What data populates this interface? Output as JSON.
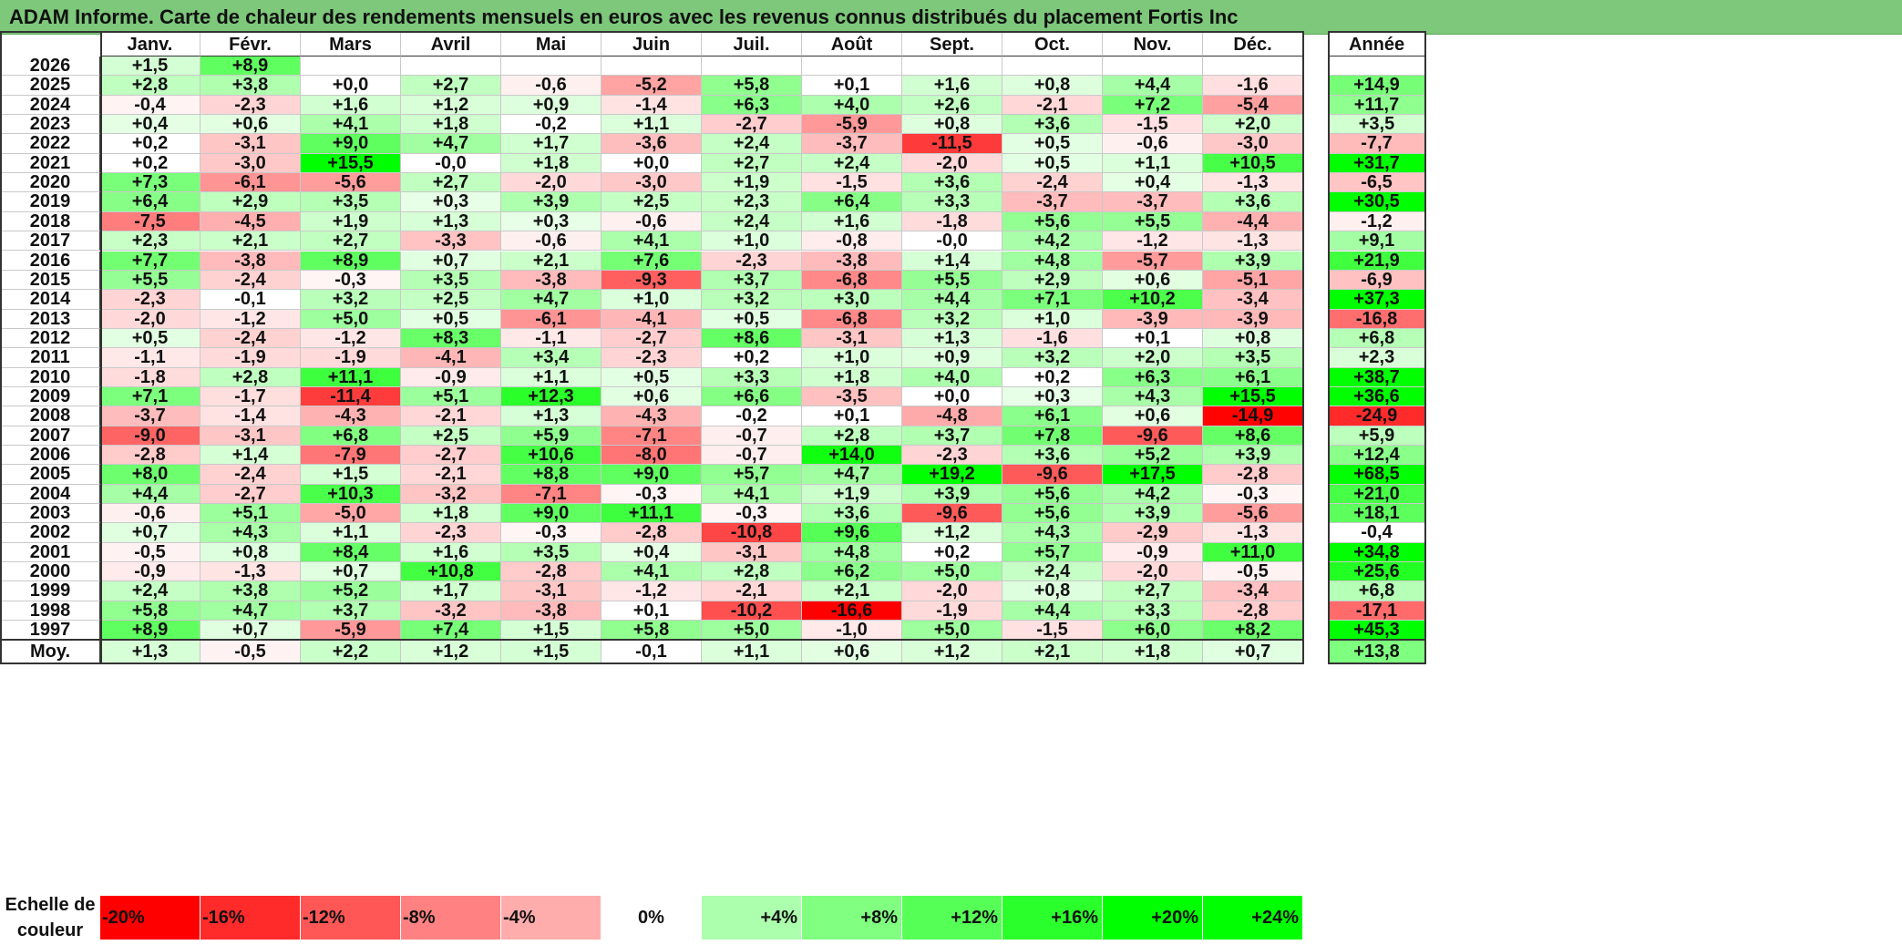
{
  "title": "ADAM Informe. Carte de chaleur des rendements mensuels en euros avec les revenus connus distribués du placement Fortis Inc",
  "chart_data": {
    "type": "heatmap",
    "title": "ADAM Informe. Carte de chaleur des rendements mensuels en euros avec les revenus connus distribués du placement Fortis Inc",
    "months": [
      "Janv.",
      "Févr.",
      "Mars",
      "Avril",
      "Mai",
      "Juin",
      "Juil.",
      "Août",
      "Sept.",
      "Oct.",
      "Nov.",
      "Déc."
    ],
    "annual_header": "Année",
    "rows": [
      {
        "year": "2026",
        "values": [
          "+1,5",
          "+8,9",
          "",
          "",
          "",
          "",
          "",
          "",
          "",
          "",
          "",
          ""
        ],
        "annual": ""
      },
      {
        "year": "2025",
        "values": [
          "+2,8",
          "+3,8",
          "+0,0",
          "+2,7",
          "-0,6",
          "-5,2",
          "+5,8",
          "+0,1",
          "+1,6",
          "+0,8",
          "+4,4",
          "-1,6"
        ],
        "annual": "+14,9"
      },
      {
        "year": "2024",
        "values": [
          "-0,4",
          "-2,3",
          "+1,6",
          "+1,2",
          "+0,9",
          "-1,4",
          "+6,3",
          "+4,0",
          "+2,6",
          "-2,1",
          "+7,2",
          "-5,4"
        ],
        "annual": "+11,7"
      },
      {
        "year": "2023",
        "values": [
          "+0,4",
          "+0,6",
          "+4,1",
          "+1,8",
          "-0,2",
          "+1,1",
          "-2,7",
          "-5,9",
          "+0,8",
          "+3,6",
          "-1,5",
          "+2,0"
        ],
        "annual": "+3,5"
      },
      {
        "year": "2022",
        "values": [
          "+0,2",
          "-3,1",
          "+9,0",
          "+4,7",
          "+1,7",
          "-3,6",
          "+2,4",
          "-3,7",
          "-11,5",
          "+0,5",
          "-0,6",
          "-3,0"
        ],
        "annual": "-7,7"
      },
      {
        "year": "2021",
        "values": [
          "+0,2",
          "-3,0",
          "+15,5",
          "-0,0",
          "+1,8",
          "+0,0",
          "+2,7",
          "+2,4",
          "-2,0",
          "+0,5",
          "+1,1",
          "+10,5"
        ],
        "annual": "+31,7"
      },
      {
        "year": "2020",
        "values": [
          "+7,3",
          "-6,1",
          "-5,6",
          "+2,7",
          "-2,0",
          "-3,0",
          "+1,9",
          "-1,5",
          "+3,6",
          "-2,4",
          "+0,4",
          "-1,3"
        ],
        "annual": "-6,5"
      },
      {
        "year": "2019",
        "values": [
          "+6,4",
          "+2,9",
          "+3,5",
          "+0,3",
          "+3,9",
          "+2,5",
          "+2,3",
          "+6,4",
          "+3,3",
          "-3,7",
          "-3,7",
          "+3,6"
        ],
        "annual": "+30,5"
      },
      {
        "year": "2018",
        "values": [
          "-7,5",
          "-4,5",
          "+1,9",
          "+1,3",
          "+0,3",
          "-0,6",
          "+2,4",
          "+1,6",
          "-1,8",
          "+5,6",
          "+5,5",
          "-4,4"
        ],
        "annual": "-1,2"
      },
      {
        "year": "2017",
        "values": [
          "+2,3",
          "+2,1",
          "+2,7",
          "-3,3",
          "-0,6",
          "+4,1",
          "+1,0",
          "-0,8",
          "-0,0",
          "+4,2",
          "-1,2",
          "-1,3"
        ],
        "annual": "+9,1"
      },
      {
        "year": "2016",
        "values": [
          "+7,7",
          "-3,8",
          "+8,9",
          "+0,7",
          "+2,1",
          "+7,6",
          "-2,3",
          "-3,8",
          "+1,4",
          "+4,8",
          "-5,7",
          "+3,9"
        ],
        "annual": "+21,9"
      },
      {
        "year": "2015",
        "values": [
          "+5,5",
          "-2,4",
          "-0,3",
          "+3,5",
          "-3,8",
          "-9,3",
          "+3,7",
          "-6,8",
          "+5,5",
          "+2,9",
          "+0,6",
          "-5,1"
        ],
        "annual": "-6,9"
      },
      {
        "year": "2014",
        "values": [
          "-2,3",
          "-0,1",
          "+3,2",
          "+2,5",
          "+4,7",
          "+1,0",
          "+3,2",
          "+3,0",
          "+4,4",
          "+7,1",
          "+10,2",
          "-3,4"
        ],
        "annual": "+37,3"
      },
      {
        "year": "2013",
        "values": [
          "-2,0",
          "-1,2",
          "+5,0",
          "+0,5",
          "-6,1",
          "-4,1",
          "+0,5",
          "-6,8",
          "+3,2",
          "+1,0",
          "-3,9",
          "-3,9"
        ],
        "annual": "-16,8"
      },
      {
        "year": "2012",
        "values": [
          "+0,5",
          "-2,4",
          "-1,2",
          "+8,3",
          "-1,1",
          "-2,7",
          "+8,6",
          "-3,1",
          "+1,3",
          "-1,6",
          "+0,1",
          "+0,8"
        ],
        "annual": "+6,8"
      },
      {
        "year": "2011",
        "values": [
          "-1,1",
          "-1,9",
          "-1,9",
          "-4,1",
          "+3,4",
          "-2,3",
          "+0,2",
          "+1,0",
          "+0,9",
          "+3,2",
          "+2,0",
          "+3,5"
        ],
        "annual": "+2,3"
      },
      {
        "year": "2010",
        "values": [
          "-1,8",
          "+2,8",
          "+11,1",
          "-0,9",
          "+1,1",
          "+0,5",
          "+3,3",
          "+1,8",
          "+4,0",
          "+0,2",
          "+6,3",
          "+6,1"
        ],
        "annual": "+38,7"
      },
      {
        "year": "2009",
        "values": [
          "+7,1",
          "-1,7",
          "-11,4",
          "+5,1",
          "+12,3",
          "+0,6",
          "+6,6",
          "-3,5",
          "+0,0",
          "+0,3",
          "+4,3",
          "+15,5"
        ],
        "annual": "+36,6"
      },
      {
        "year": "2008",
        "values": [
          "-3,7",
          "-1,4",
          "-4,3",
          "-2,1",
          "+1,3",
          "-4,3",
          "-0,2",
          "+0,1",
          "-4,8",
          "+6,1",
          "+0,6",
          "-14,9"
        ],
        "annual": "-24,9"
      },
      {
        "year": "2007",
        "values": [
          "-9,0",
          "-3,1",
          "+6,8",
          "+2,5",
          "+5,9",
          "-7,1",
          "-0,7",
          "+2,8",
          "+3,7",
          "+7,8",
          "-9,6",
          "+8,6"
        ],
        "annual": "+5,9"
      },
      {
        "year": "2006",
        "values": [
          "-2,8",
          "+1,4",
          "-7,9",
          "-2,7",
          "+10,6",
          "-8,0",
          "-0,7",
          "+14,0",
          "-2,3",
          "+3,6",
          "+5,2",
          "+3,9"
        ],
        "annual": "+12,4"
      },
      {
        "year": "2005",
        "values": [
          "+8,0",
          "-2,4",
          "+1,5",
          "-2,1",
          "+8,8",
          "+9,0",
          "+5,7",
          "+4,7",
          "+19,2",
          "-9,6",
          "+17,5",
          "-2,8"
        ],
        "annual": "+68,5"
      },
      {
        "year": "2004",
        "values": [
          "+4,4",
          "-2,7",
          "+10,3",
          "-3,2",
          "-7,1",
          "-0,3",
          "+4,1",
          "+1,9",
          "+3,9",
          "+5,6",
          "+4,2",
          "-0,3"
        ],
        "annual": "+21,0"
      },
      {
        "year": "2003",
        "values": [
          "-0,6",
          "+5,1",
          "-5,0",
          "+1,8",
          "+9,0",
          "+11,1",
          "-0,3",
          "+3,6",
          "-9,6",
          "+5,6",
          "+3,9",
          "-5,6"
        ],
        "annual": "+18,1"
      },
      {
        "year": "2002",
        "values": [
          "+0,7",
          "+4,3",
          "+1,1",
          "-2,3",
          "-0,3",
          "-2,8",
          "-10,8",
          "+9,6",
          "+1,2",
          "+4,3",
          "-2,9",
          "-1,3"
        ],
        "annual": "-0,4"
      },
      {
        "year": "2001",
        "values": [
          "-0,5",
          "+0,8",
          "+8,4",
          "+1,6",
          "+3,5",
          "+0,4",
          "-3,1",
          "+4,8",
          "+0,2",
          "+5,7",
          "-0,9",
          "+11,0"
        ],
        "annual": "+34,8"
      },
      {
        "year": "2000",
        "values": [
          "-0,9",
          "-1,3",
          "+0,7",
          "+10,8",
          "-2,8",
          "+4,1",
          "+2,8",
          "+6,2",
          "+5,0",
          "+2,4",
          "-2,0",
          "-0,5"
        ],
        "annual": "+25,6"
      },
      {
        "year": "1999",
        "values": [
          "+2,4",
          "+3,8",
          "+5,2",
          "+1,7",
          "-3,1",
          "-1,2",
          "-2,1",
          "+2,1",
          "-2,0",
          "+0,8",
          "+2,7",
          "-3,4"
        ],
        "annual": "+6,8"
      },
      {
        "year": "1998",
        "values": [
          "+5,8",
          "+4,7",
          "+3,7",
          "-3,2",
          "-3,8",
          "+0,1",
          "-10,2",
          "-16,6",
          "-1,9",
          "+4,4",
          "+3,3",
          "-2,8"
        ],
        "annual": "-17,1"
      },
      {
        "year": "1997",
        "values": [
          "+8,9",
          "+0,7",
          "-5,9",
          "+7,4",
          "+1,5",
          "+5,8",
          "+5,0",
          "-1,0",
          "+5,0",
          "-1,5",
          "+6,0",
          "+8,2"
        ],
        "annual": "+45,3"
      }
    ],
    "average": {
      "label": "Moy.",
      "values": [
        "+1,3",
        "-0,5",
        "+2,2",
        "+1,2",
        "+1,5",
        "-0,1",
        "+1,1",
        "+0,6",
        "+1,2",
        "+2,1",
        "+1,8",
        "+0,7"
      ],
      "annual": "+13,8"
    },
    "scale": {
      "label_line1": "Echelle de",
      "label_line2": "couleur",
      "stops": [
        {
          "label": "-20%",
          "value": -20
        },
        {
          "label": "-16%",
          "value": -16
        },
        {
          "label": "-12%",
          "value": -12
        },
        {
          "label": "-8%",
          "value": -8
        },
        {
          "label": "-4%",
          "value": -4
        },
        {
          "label": "0%",
          "value": 0
        },
        {
          "label": "+4%",
          "value": 4
        },
        {
          "label": "+8%",
          "value": 8
        },
        {
          "label": "+12%",
          "value": 12
        },
        {
          "label": "+16%",
          "value": 16
        },
        {
          "label": "+20%",
          "value": 20
        },
        {
          "label": "+24%",
          "value": 24
        }
      ]
    },
    "colors": {
      "negative_max": "#ff0000",
      "neutral": "#ffffff",
      "positive_max": "#00ff00",
      "title_bg": "#7dc87a"
    }
  }
}
